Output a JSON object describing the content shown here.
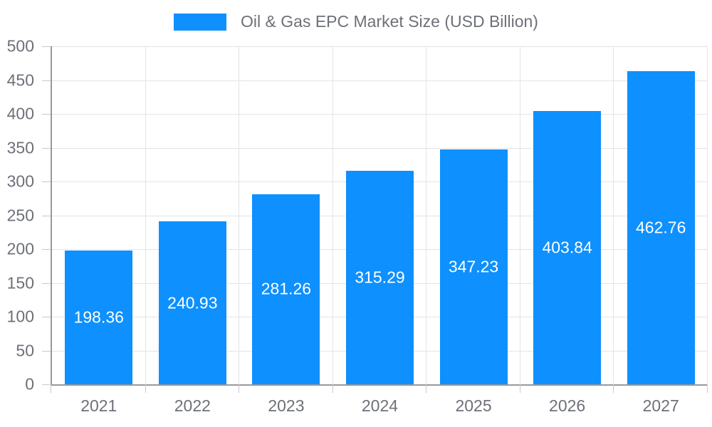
{
  "chart_data": {
    "type": "bar",
    "title": "Oil & Gas EPC Market Size (USD Billion)",
    "legend": [
      "Oil & Gas EPC Market Size (USD Billion)"
    ],
    "legend_position": "top-center",
    "categories": [
      "2021",
      "2022",
      "2023",
      "2024",
      "2025",
      "2026",
      "2027"
    ],
    "values": [
      198.36,
      240.93,
      281.26,
      315.29,
      347.23,
      403.84,
      462.76
    ],
    "value_labels": [
      "198.36",
      "240.93",
      "281.26",
      "315.29",
      "347.23",
      "403.84",
      "462.76"
    ],
    "value_label_position": "inside-center",
    "xlabel": "",
    "ylabel": "",
    "ylim": [
      0,
      500
    ],
    "ytick_interval": 50,
    "y_ticks": [
      0,
      50,
      100,
      150,
      200,
      250,
      300,
      350,
      400,
      450,
      500
    ],
    "grid": "horizontal and vertical light gridlines"
  },
  "colors": {
    "bar": "#0e90fe",
    "axis": "#999999",
    "grid": "#e4e4e9",
    "tick": "#c9c9cf",
    "label": "#6e7079",
    "bar_label": "#ffffff",
    "background": "#ffffff"
  }
}
